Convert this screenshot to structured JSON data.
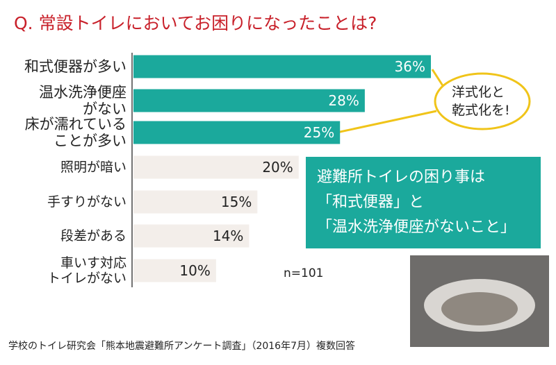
{
  "chart_data": {
    "type": "bar",
    "orientation": "horizontal",
    "title": "Q. 常設トイレにおいてお困りになったことは?",
    "categories": [
      "和式便器が多い",
      "温水洗浄便座\nがない",
      "床が濡れている\nことが多い",
      "照明が暗い",
      "手すりがない",
      "段差がある",
      "車いす対応\nトイレがない"
    ],
    "values": [
      36,
      28,
      25,
      20,
      15,
      14,
      10
    ],
    "value_labels": [
      "36%",
      "28%",
      "25%",
      "20%",
      "15%",
      "14%",
      "10%"
    ],
    "colors": [
      "#1ba99c",
      "#1ba99c",
      "#1ba99c",
      "#f3eeea",
      "#f3eeea",
      "#f3eeea",
      "#f3eeea"
    ],
    "callout": "洋式化と\n乾式化を!",
    "highlight_box": "避難所トイレの困り事は\n「和式便器」と\n「温水洗浄便座がないこと」",
    "sample_size": "n=101",
    "source": "学校のトイレ研究会「熊本地震避難所アンケート調査」（2016年7月）複数回答"
  }
}
